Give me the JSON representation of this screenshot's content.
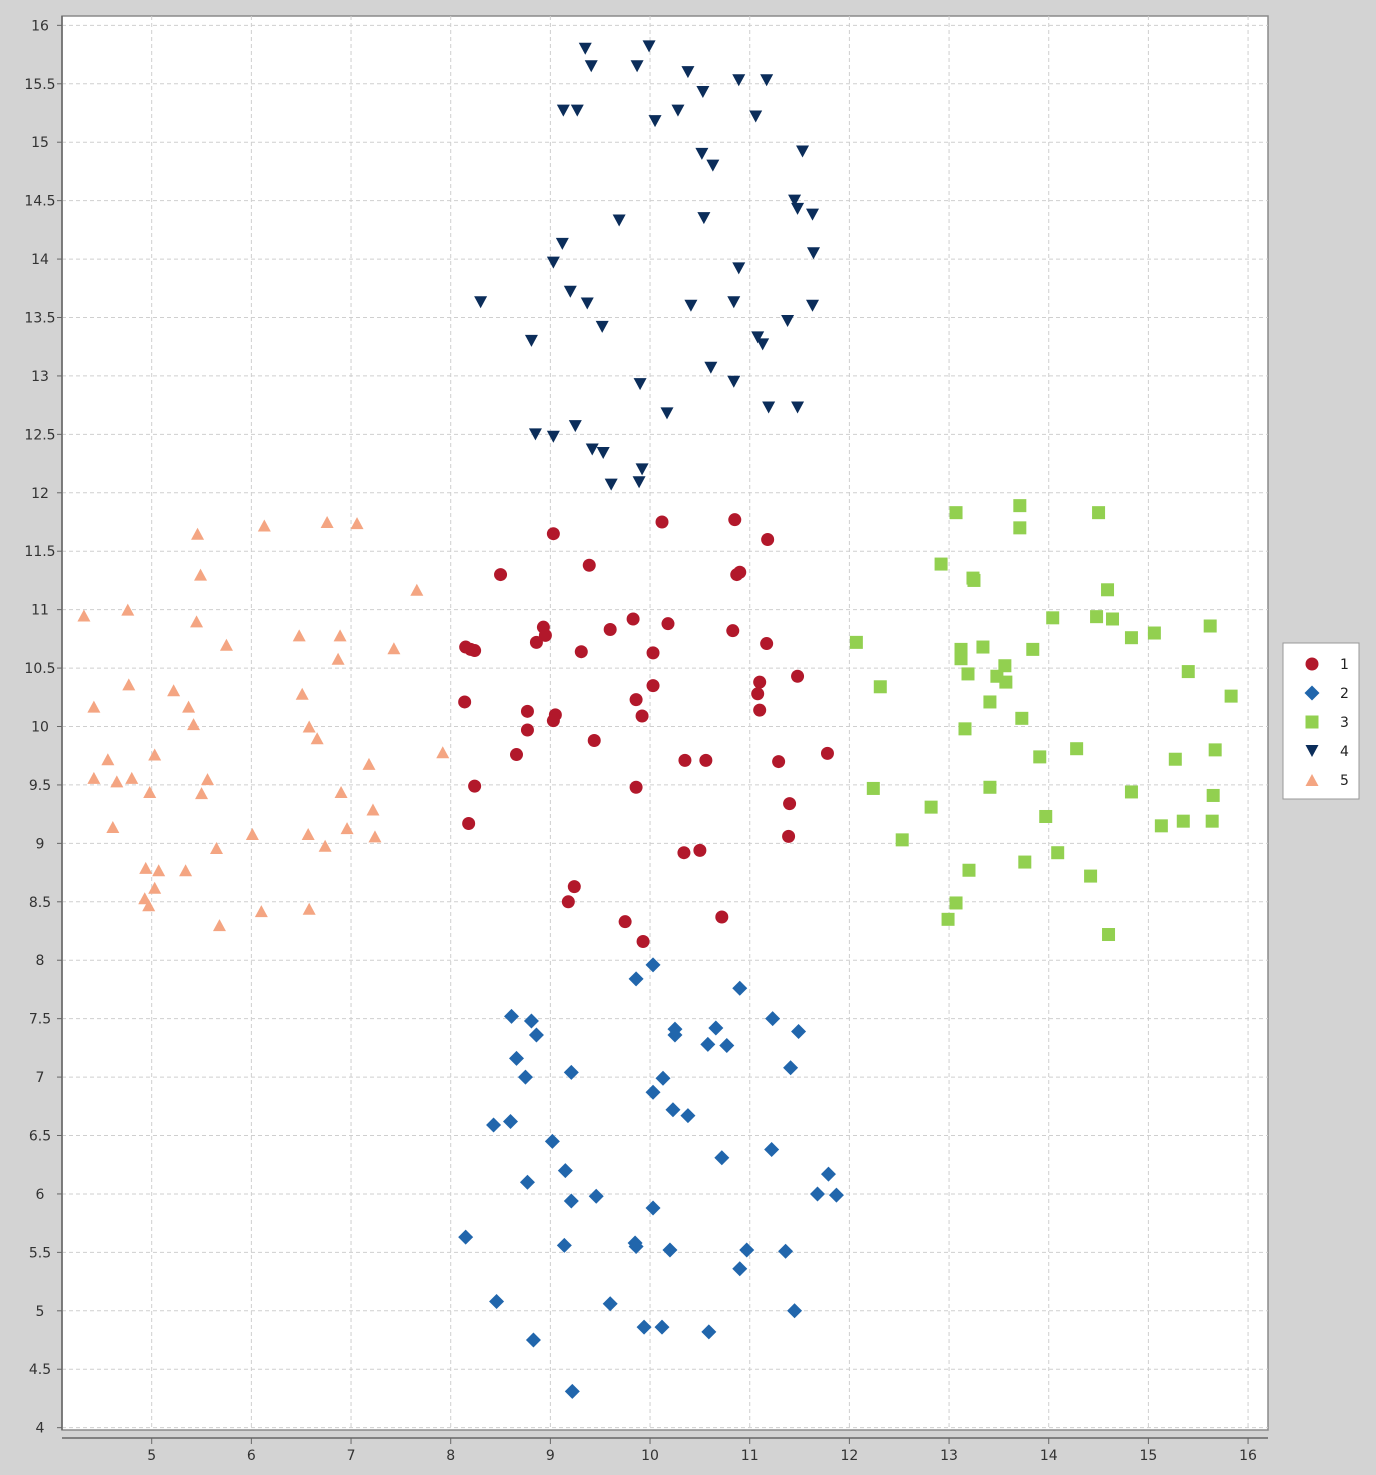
{
  "chart_data": {
    "type": "scatter",
    "title": "",
    "xlabel": "",
    "ylabel": "",
    "xlim": [
      4.1,
      16.2
    ],
    "ylim": [
      3.98,
      16.08
    ],
    "xticks": [
      5,
      6,
      7,
      8,
      9,
      10,
      11,
      12,
      13,
      14,
      15,
      16
    ],
    "yticks": [
      4,
      4.5,
      5,
      5.5,
      6,
      6.5,
      7,
      7.5,
      8,
      8.5,
      9,
      9.5,
      10,
      10.5,
      11,
      11.5,
      12,
      12.5,
      13,
      13.5,
      14,
      14.5,
      15,
      15.5,
      16
    ],
    "grid": true,
    "legend_position": "right",
    "series": [
      {
        "name": "1",
        "color": "#b2182b",
        "marker": "circle",
        "points": [
          [
            9.03,
            11.65
          ],
          [
            10.12,
            11.75
          ],
          [
            10.85,
            11.77
          ],
          [
            11.18,
            11.6
          ],
          [
            8.5,
            11.3
          ],
          [
            9.39,
            11.38
          ],
          [
            10.87,
            11.3
          ],
          [
            10.9,
            11.32
          ],
          [
            8.93,
            10.85
          ],
          [
            8.95,
            10.78
          ],
          [
            8.86,
            10.72
          ],
          [
            9.6,
            10.83
          ],
          [
            9.83,
            10.92
          ],
          [
            10.18,
            10.88
          ],
          [
            10.83,
            10.82
          ],
          [
            11.17,
            10.71
          ],
          [
            8.15,
            10.68
          ],
          [
            8.2,
            10.66
          ],
          [
            8.24,
            10.65
          ],
          [
            9.31,
            10.64
          ],
          [
            10.03,
            10.63
          ],
          [
            11.1,
            10.38
          ],
          [
            11.48,
            10.43
          ],
          [
            10.03,
            10.35
          ],
          [
            11.08,
            10.28
          ],
          [
            8.14,
            10.21
          ],
          [
            9.86,
            10.23
          ],
          [
            11.1,
            10.14
          ],
          [
            8.77,
            10.13
          ],
          [
            9.05,
            10.1
          ],
          [
            9.03,
            10.05
          ],
          [
            9.92,
            10.09
          ],
          [
            8.77,
            9.97
          ],
          [
            9.44,
            9.88
          ],
          [
            8.66,
            9.76
          ],
          [
            10.35,
            9.71
          ],
          [
            10.56,
            9.71
          ],
          [
            11.29,
            9.7
          ],
          [
            11.78,
            9.77
          ],
          [
            8.24,
            9.49
          ],
          [
            9.86,
            9.48
          ],
          [
            11.4,
            9.34
          ],
          [
            8.18,
            9.17
          ],
          [
            11.39,
            9.06
          ],
          [
            10.34,
            8.92
          ],
          [
            10.5,
            8.94
          ],
          [
            9.24,
            8.63
          ],
          [
            9.18,
            8.5
          ],
          [
            9.75,
            8.33
          ],
          [
            10.72,
            8.37
          ],
          [
            9.93,
            8.16
          ]
        ]
      },
      {
        "name": "2",
        "color": "#2166ac",
        "marker": "diamond",
        "points": [
          [
            10.03,
            7.96
          ],
          [
            9.86,
            7.84
          ],
          [
            10.9,
            7.76
          ],
          [
            8.61,
            7.52
          ],
          [
            8.81,
            7.48
          ],
          [
            8.86,
            7.36
          ],
          [
            11.23,
            7.5
          ],
          [
            10.25,
            7.41
          ],
          [
            10.25,
            7.36
          ],
          [
            10.66,
            7.42
          ],
          [
            11.49,
            7.39
          ],
          [
            10.58,
            7.28
          ],
          [
            10.77,
            7.27
          ],
          [
            8.66,
            7.16
          ],
          [
            8.75,
            7.0
          ],
          [
            9.21,
            7.04
          ],
          [
            10.13,
            6.99
          ],
          [
            11.41,
            7.08
          ],
          [
            10.03,
            6.87
          ],
          [
            10.23,
            6.72
          ],
          [
            10.38,
            6.67
          ],
          [
            8.43,
            6.59
          ],
          [
            8.6,
            6.62
          ],
          [
            9.02,
            6.45
          ],
          [
            10.72,
            6.31
          ],
          [
            11.22,
            6.38
          ],
          [
            9.15,
            6.2
          ],
          [
            8.77,
            6.1
          ],
          [
            9.21,
            5.94
          ],
          [
            9.46,
            5.98
          ],
          [
            11.79,
            6.17
          ],
          [
            11.68,
            6.0
          ],
          [
            11.87,
            5.99
          ],
          [
            10.03,
            5.88
          ],
          [
            8.15,
            5.63
          ],
          [
            9.14,
            5.56
          ],
          [
            9.85,
            5.58
          ],
          [
            9.86,
            5.55
          ],
          [
            10.2,
            5.52
          ],
          [
            10.97,
            5.52
          ],
          [
            11.36,
            5.51
          ],
          [
            10.9,
            5.36
          ],
          [
            8.46,
            5.08
          ],
          [
            9.6,
            5.06
          ],
          [
            11.45,
            5.0
          ],
          [
            9.94,
            4.86
          ],
          [
            10.12,
            4.86
          ],
          [
            10.59,
            4.82
          ],
          [
            8.83,
            4.75
          ],
          [
            9.22,
            4.31
          ]
        ]
      },
      {
        "name": "3",
        "color": "#92d050",
        "marker": "square",
        "points": [
          [
            13.71,
            11.89
          ],
          [
            13.07,
            11.83
          ],
          [
            14.5,
            11.83
          ],
          [
            13.71,
            11.7
          ],
          [
            12.92,
            11.39
          ],
          [
            13.24,
            11.27
          ],
          [
            13.25,
            11.25
          ],
          [
            14.59,
            11.17
          ],
          [
            14.04,
            10.93
          ],
          [
            14.48,
            10.94
          ],
          [
            14.64,
            10.92
          ],
          [
            15.62,
            10.86
          ],
          [
            15.06,
            10.8
          ],
          [
            14.83,
            10.76
          ],
          [
            12.07,
            10.72
          ],
          [
            13.12,
            10.66
          ],
          [
            13.34,
            10.68
          ],
          [
            13.84,
            10.66
          ],
          [
            13.12,
            10.58
          ],
          [
            13.56,
            10.52
          ],
          [
            13.19,
            10.45
          ],
          [
            13.48,
            10.43
          ],
          [
            13.57,
            10.38
          ],
          [
            15.4,
            10.47
          ],
          [
            12.31,
            10.34
          ],
          [
            15.83,
            10.26
          ],
          [
            13.41,
            10.21
          ],
          [
            13.73,
            10.07
          ],
          [
            13.16,
            9.98
          ],
          [
            14.28,
            9.81
          ],
          [
            15.67,
            9.8
          ],
          [
            13.91,
            9.74
          ],
          [
            15.27,
            9.72
          ],
          [
            12.24,
            9.47
          ],
          [
            13.41,
            9.48
          ],
          [
            14.83,
            9.44
          ],
          [
            15.65,
            9.41
          ],
          [
            12.82,
            9.31
          ],
          [
            13.97,
            9.23
          ],
          [
            15.13,
            9.15
          ],
          [
            15.35,
            9.19
          ],
          [
            15.64,
            9.19
          ],
          [
            12.53,
            9.03
          ],
          [
            14.09,
            8.92
          ],
          [
            13.76,
            8.84
          ],
          [
            13.2,
            8.77
          ],
          [
            14.42,
            8.72
          ],
          [
            13.07,
            8.49
          ],
          [
            12.99,
            8.35
          ],
          [
            14.6,
            8.22
          ]
        ]
      },
      {
        "name": "4",
        "color": "#0b2d5a",
        "marker": "triangle-down",
        "points": [
          [
            9.35,
            15.8
          ],
          [
            9.99,
            15.82
          ],
          [
            9.41,
            15.65
          ],
          [
            9.87,
            15.65
          ],
          [
            10.38,
            15.6
          ],
          [
            10.89,
            15.53
          ],
          [
            11.17,
            15.53
          ],
          [
            10.53,
            15.43
          ],
          [
            9.13,
            15.27
          ],
          [
            9.27,
            15.27
          ],
          [
            10.28,
            15.27
          ],
          [
            10.05,
            15.18
          ],
          [
            11.06,
            15.22
          ],
          [
            11.53,
            14.92
          ],
          [
            10.52,
            14.9
          ],
          [
            10.63,
            14.8
          ],
          [
            11.45,
            14.5
          ],
          [
            11.48,
            14.43
          ],
          [
            11.63,
            14.38
          ],
          [
            9.69,
            14.33
          ],
          [
            10.54,
            14.35
          ],
          [
            9.12,
            14.13
          ],
          [
            11.64,
            14.05
          ],
          [
            9.03,
            13.97
          ],
          [
            10.89,
            13.92
          ],
          [
            8.3,
            13.63
          ],
          [
            9.2,
            13.72
          ],
          [
            9.37,
            13.62
          ],
          [
            10.41,
            13.6
          ],
          [
            10.84,
            13.63
          ],
          [
            11.63,
            13.6
          ],
          [
            11.38,
            13.47
          ],
          [
            9.52,
            13.42
          ],
          [
            8.81,
            13.3
          ],
          [
            11.08,
            13.33
          ],
          [
            11.13,
            13.27
          ],
          [
            10.61,
            13.07
          ],
          [
            9.9,
            12.93
          ],
          [
            10.84,
            12.95
          ],
          [
            11.19,
            12.73
          ],
          [
            11.48,
            12.73
          ],
          [
            10.17,
            12.68
          ],
          [
            9.25,
            12.57
          ],
          [
            8.85,
            12.5
          ],
          [
            9.03,
            12.48
          ],
          [
            9.42,
            12.37
          ],
          [
            9.53,
            12.34
          ],
          [
            9.92,
            12.2
          ],
          [
            9.61,
            12.07
          ],
          [
            9.89,
            12.09
          ]
        ]
      },
      {
        "name": "5",
        "color": "#f4a582",
        "marker": "triangle-up",
        "points": [
          [
            6.76,
            11.75
          ],
          [
            7.06,
            11.74
          ],
          [
            6.13,
            11.72
          ],
          [
            5.46,
            11.65
          ],
          [
            5.49,
            11.3
          ],
          [
            7.66,
            11.17
          ],
          [
            4.76,
            11.0
          ],
          [
            4.32,
            10.95
          ],
          [
            5.45,
            10.9
          ],
          [
            6.48,
            10.78
          ],
          [
            6.89,
            10.78
          ],
          [
            5.75,
            10.7
          ],
          [
            7.43,
            10.67
          ],
          [
            6.87,
            10.58
          ],
          [
            4.77,
            10.36
          ],
          [
            5.22,
            10.31
          ],
          [
            6.51,
            10.28
          ],
          [
            4.42,
            10.17
          ],
          [
            5.37,
            10.17
          ],
          [
            5.42,
            10.02
          ],
          [
            6.58,
            10.0
          ],
          [
            6.66,
            9.9
          ],
          [
            7.92,
            9.78
          ],
          [
            5.03,
            9.76
          ],
          [
            4.56,
            9.72
          ],
          [
            7.18,
            9.68
          ],
          [
            4.42,
            9.56
          ],
          [
            4.8,
            9.56
          ],
          [
            4.65,
            9.53
          ],
          [
            5.56,
            9.55
          ],
          [
            4.98,
            9.44
          ],
          [
            5.5,
            9.43
          ],
          [
            6.9,
            9.44
          ],
          [
            7.22,
            9.29
          ],
          [
            4.61,
            9.14
          ],
          [
            6.96,
            9.13
          ],
          [
            6.01,
            9.08
          ],
          [
            6.57,
            9.08
          ],
          [
            7.24,
            9.06
          ],
          [
            5.65,
            8.96
          ],
          [
            6.74,
            8.98
          ],
          [
            4.94,
            8.79
          ],
          [
            5.07,
            8.77
          ],
          [
            5.34,
            8.77
          ],
          [
            5.03,
            8.62
          ],
          [
            4.93,
            8.53
          ],
          [
            4.97,
            8.47
          ],
          [
            6.1,
            8.42
          ],
          [
            6.58,
            8.44
          ],
          [
            5.68,
            8.3
          ]
        ]
      }
    ]
  }
}
